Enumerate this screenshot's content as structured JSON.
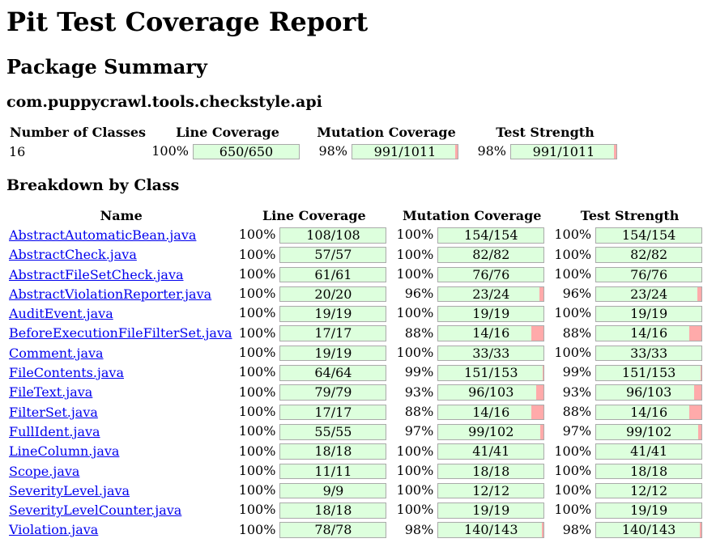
{
  "page": {
    "title": "Pit Test Coverage Report",
    "package_summary_heading": "Package Summary",
    "package_name": "com.puppycrawl.tools.checkstyle.api",
    "breakdown_heading": "Breakdown by Class"
  },
  "colors": {
    "covered_green": "#DDFFDD",
    "uncovered_pink": "#FFAAAA",
    "bar_border": "#AAAAAA",
    "link_blue": "#0000EE",
    "text": "#000000",
    "background": "#FFFFFF"
  },
  "summary_table": {
    "headers": {
      "classes": "Number of Classes",
      "line": "Line Coverage",
      "mutation": "Mutation Coverage",
      "strength": "Test Strength"
    },
    "number_of_classes": "16",
    "line": {
      "percent": "100%",
      "fraction": "650/650",
      "value": 100
    },
    "mutation": {
      "percent": "98%",
      "fraction": "991/1011",
      "value": 98
    },
    "strength": {
      "percent": "98%",
      "fraction": "991/1011",
      "value": 98
    }
  },
  "breakdown_table": {
    "headers": {
      "name": "Name",
      "line": "Line Coverage",
      "mutation": "Mutation Coverage",
      "strength": "Test Strength"
    },
    "rows": [
      {
        "name": "AbstractAutomaticBean.java",
        "line": {
          "percent": "100%",
          "fraction": "108/108",
          "value": 100
        },
        "mutation": {
          "percent": "100%",
          "fraction": "154/154",
          "value": 100
        },
        "strength": {
          "percent": "100%",
          "fraction": "154/154",
          "value": 100
        }
      },
      {
        "name": "AbstractCheck.java",
        "line": {
          "percent": "100%",
          "fraction": "57/57",
          "value": 100
        },
        "mutation": {
          "percent": "100%",
          "fraction": "82/82",
          "value": 100
        },
        "strength": {
          "percent": "100%",
          "fraction": "82/82",
          "value": 100
        }
      },
      {
        "name": "AbstractFileSetCheck.java",
        "line": {
          "percent": "100%",
          "fraction": "61/61",
          "value": 100
        },
        "mutation": {
          "percent": "100%",
          "fraction": "76/76",
          "value": 100
        },
        "strength": {
          "percent": "100%",
          "fraction": "76/76",
          "value": 100
        }
      },
      {
        "name": "AbstractViolationReporter.java",
        "line": {
          "percent": "100%",
          "fraction": "20/20",
          "value": 100
        },
        "mutation": {
          "percent": "96%",
          "fraction": "23/24",
          "value": 96
        },
        "strength": {
          "percent": "96%",
          "fraction": "23/24",
          "value": 96
        }
      },
      {
        "name": "AuditEvent.java",
        "line": {
          "percent": "100%",
          "fraction": "19/19",
          "value": 100
        },
        "mutation": {
          "percent": "100%",
          "fraction": "19/19",
          "value": 100
        },
        "strength": {
          "percent": "100%",
          "fraction": "19/19",
          "value": 100
        }
      },
      {
        "name": "BeforeExecutionFileFilterSet.java",
        "line": {
          "percent": "100%",
          "fraction": "17/17",
          "value": 100
        },
        "mutation": {
          "percent": "88%",
          "fraction": "14/16",
          "value": 88
        },
        "strength": {
          "percent": "88%",
          "fraction": "14/16",
          "value": 88
        }
      },
      {
        "name": "Comment.java",
        "line": {
          "percent": "100%",
          "fraction": "19/19",
          "value": 100
        },
        "mutation": {
          "percent": "100%",
          "fraction": "33/33",
          "value": 100
        },
        "strength": {
          "percent": "100%",
          "fraction": "33/33",
          "value": 100
        }
      },
      {
        "name": "FileContents.java",
        "line": {
          "percent": "100%",
          "fraction": "64/64",
          "value": 100
        },
        "mutation": {
          "percent": "99%",
          "fraction": "151/153",
          "value": 99
        },
        "strength": {
          "percent": "99%",
          "fraction": "151/153",
          "value": 99
        }
      },
      {
        "name": "FileText.java",
        "line": {
          "percent": "100%",
          "fraction": "79/79",
          "value": 100
        },
        "mutation": {
          "percent": "93%",
          "fraction": "96/103",
          "value": 93
        },
        "strength": {
          "percent": "93%",
          "fraction": "96/103",
          "value": 93
        }
      },
      {
        "name": "FilterSet.java",
        "line": {
          "percent": "100%",
          "fraction": "17/17",
          "value": 100
        },
        "mutation": {
          "percent": "88%",
          "fraction": "14/16",
          "value": 88
        },
        "strength": {
          "percent": "88%",
          "fraction": "14/16",
          "value": 88
        }
      },
      {
        "name": "FullIdent.java",
        "line": {
          "percent": "100%",
          "fraction": "55/55",
          "value": 100
        },
        "mutation": {
          "percent": "97%",
          "fraction": "99/102",
          "value": 97
        },
        "strength": {
          "percent": "97%",
          "fraction": "99/102",
          "value": 97
        }
      },
      {
        "name": "LineColumn.java",
        "line": {
          "percent": "100%",
          "fraction": "18/18",
          "value": 100
        },
        "mutation": {
          "percent": "100%",
          "fraction": "41/41",
          "value": 100
        },
        "strength": {
          "percent": "100%",
          "fraction": "41/41",
          "value": 100
        }
      },
      {
        "name": "Scope.java",
        "line": {
          "percent": "100%",
          "fraction": "11/11",
          "value": 100
        },
        "mutation": {
          "percent": "100%",
          "fraction": "18/18",
          "value": 100
        },
        "strength": {
          "percent": "100%",
          "fraction": "18/18",
          "value": 100
        }
      },
      {
        "name": "SeverityLevel.java",
        "line": {
          "percent": "100%",
          "fraction": "9/9",
          "value": 100
        },
        "mutation": {
          "percent": "100%",
          "fraction": "12/12",
          "value": 100
        },
        "strength": {
          "percent": "100%",
          "fraction": "12/12",
          "value": 100
        }
      },
      {
        "name": "SeverityLevelCounter.java",
        "line": {
          "percent": "100%",
          "fraction": "18/18",
          "value": 100
        },
        "mutation": {
          "percent": "100%",
          "fraction": "19/19",
          "value": 100
        },
        "strength": {
          "percent": "100%",
          "fraction": "19/19",
          "value": 100
        }
      },
      {
        "name": "Violation.java",
        "line": {
          "percent": "100%",
          "fraction": "78/78",
          "value": 100
        },
        "mutation": {
          "percent": "98%",
          "fraction": "140/143",
          "value": 98
        },
        "strength": {
          "percent": "98%",
          "fraction": "140/143",
          "value": 98
        }
      }
    ]
  }
}
